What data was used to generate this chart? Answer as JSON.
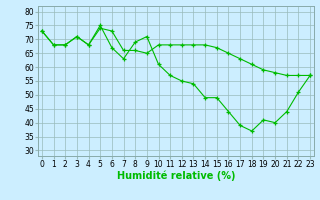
{
  "x": [
    0,
    1,
    2,
    3,
    4,
    5,
    6,
    7,
    8,
    9,
    10,
    11,
    12,
    13,
    14,
    15,
    16,
    17,
    18,
    19,
    20,
    21,
    22,
    23
  ],
  "line1": [
    73,
    68,
    68,
    71,
    68,
    75,
    67,
    63,
    69,
    71,
    61,
    57,
    55,
    54,
    49,
    49,
    44,
    39,
    37,
    41,
    40,
    44,
    51,
    57
  ],
  "line2": [
    73,
    68,
    68,
    71,
    68,
    74,
    73,
    66,
    66,
    65,
    68,
    68,
    68,
    68,
    68,
    67,
    65,
    63,
    61,
    59,
    58,
    57,
    57,
    57
  ],
  "bg_color": "#cceeff",
  "line_color": "#00bb00",
  "grid_color": "#99bbbb",
  "xlabel": "Humidité relative (%)",
  "ylim": [
    28,
    82
  ],
  "xlim": [
    0,
    23
  ],
  "yticks": [
    30,
    35,
    40,
    45,
    50,
    55,
    60,
    65,
    70,
    75,
    80
  ],
  "xticks": [
    0,
    1,
    2,
    3,
    4,
    5,
    6,
    7,
    8,
    9,
    10,
    11,
    12,
    13,
    14,
    15,
    16,
    17,
    18,
    19,
    20,
    21,
    22,
    23
  ],
  "tick_fontsize": 5.5,
  "xlabel_fontsize": 7
}
